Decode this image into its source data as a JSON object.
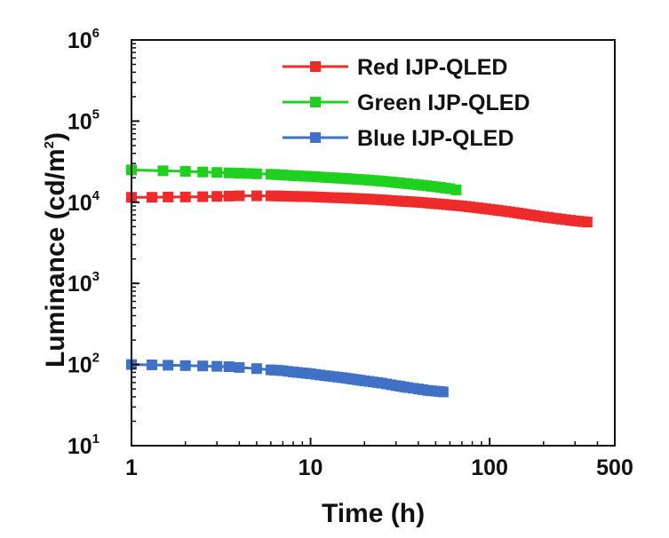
{
  "chart_data": {
    "type": "line",
    "xlabel": "Time (h)",
    "ylabel": "Luminance (cd/m2)",
    "ylabel_parts": {
      "base": "Luminance (cd/m",
      "exp": "2",
      "close": ")"
    },
    "x_scale": "log",
    "y_scale": "log",
    "xlim": [
      1,
      500
    ],
    "ylim": [
      10,
      1000000
    ],
    "x_ticks": [
      {
        "value": 1,
        "label": "1"
      },
      {
        "value": 10,
        "label": "10"
      },
      {
        "value": 100,
        "label": "100"
      },
      {
        "value": 500,
        "label": "500"
      }
    ],
    "y_ticks": [
      {
        "value": 10,
        "base": "10",
        "exp": "1"
      },
      {
        "value": 100,
        "base": "10",
        "exp": "2"
      },
      {
        "value": 1000,
        "base": "10",
        "exp": "3"
      },
      {
        "value": 10000,
        "base": "10",
        "exp": "4"
      },
      {
        "value": 100000,
        "base": "10",
        "exp": "5"
      },
      {
        "value": 1000000,
        "base": "10",
        "exp": "6"
      }
    ],
    "grid": false,
    "legend_position": "top-right",
    "series": [
      {
        "name": "Red IJP-QLED",
        "color": "#ee2a2a",
        "x": [
          1,
          1.3,
          1.6,
          2,
          2.5,
          3,
          3.5,
          4,
          5,
          6,
          7,
          8,
          10,
          12,
          15,
          20,
          25,
          30,
          40,
          50,
          70,
          100,
          130,
          160,
          200,
          250,
          300,
          350
        ],
        "y": [
          11500,
          11500,
          11600,
          11600,
          11700,
          11800,
          11900,
          12000,
          12000,
          12000,
          11900,
          11800,
          11700,
          11500,
          11300,
          11000,
          10700,
          10400,
          10000,
          9600,
          9000,
          8200,
          7600,
          7100,
          6600,
          6200,
          5900,
          5700
        ]
      },
      {
        "name": "Green IJP-QLED",
        "color": "#1ed11e",
        "x": [
          1,
          1.5,
          2,
          2.5,
          3,
          3.5,
          4,
          4.5,
          5,
          6,
          7,
          8,
          10,
          12,
          15,
          20,
          25,
          30,
          35,
          40,
          50,
          60,
          65
        ],
        "y": [
          25000,
          24400,
          24000,
          23600,
          23300,
          23000,
          22800,
          22600,
          22400,
          22100,
          21700,
          21300,
          20800,
          20300,
          19700,
          18900,
          18200,
          17500,
          16900,
          16400,
          15500,
          14700,
          14200
        ]
      },
      {
        "name": "Blue IJP-QLED",
        "color": "#3f72c6",
        "x": [
          1,
          1.3,
          1.6,
          2,
          2.5,
          3,
          3.5,
          4,
          5,
          6,
          7,
          8,
          10,
          12,
          15,
          20,
          25,
          30,
          35,
          40,
          45,
          50,
          55
        ],
        "y": [
          100,
          99,
          98,
          97,
          96,
          95,
          94,
          92,
          89,
          86,
          84,
          81,
          77,
          73,
          69,
          63,
          59,
          55,
          52,
          50,
          48,
          47,
          46
        ]
      }
    ]
  }
}
